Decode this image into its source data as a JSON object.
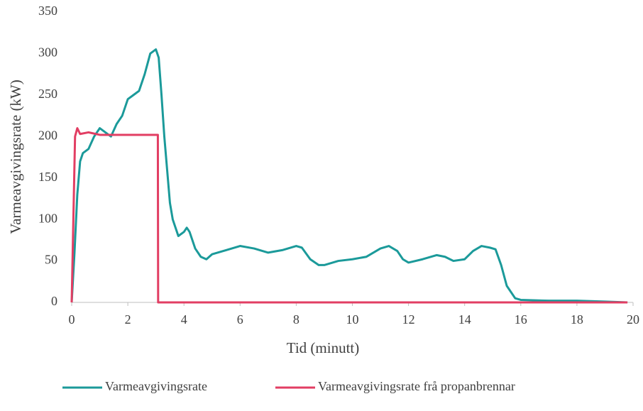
{
  "chart_data": {
    "type": "line",
    "x_label": "Tid (minutt)",
    "y_label": "Varmeavgivingsrate (kW)",
    "xlim": [
      0,
      20
    ],
    "xticks": [
      0,
      2,
      4,
      6,
      8,
      10,
      12,
      14,
      16,
      18,
      20
    ],
    "ylim": [
      0,
      350
    ],
    "yticks": [
      0,
      50,
      100,
      150,
      200,
      250,
      300,
      350
    ],
    "grid": false,
    "legend": "bottom",
    "series": [
      {
        "name": "Varmeavgivingsrate",
        "color": "#1b9a9a",
        "x": [
          0,
          0.1,
          0.2,
          0.3,
          0.4,
          0.6,
          0.8,
          1.0,
          1.2,
          1.4,
          1.6,
          1.8,
          2.0,
          2.2,
          2.4,
          2.6,
          2.8,
          3.0,
          3.1,
          3.2,
          3.3,
          3.4,
          3.5,
          3.6,
          3.8,
          4.0,
          4.1,
          4.2,
          4.4,
          4.6,
          4.8,
          5.0,
          5.5,
          6.0,
          6.5,
          7.0,
          7.5,
          8.0,
          8.2,
          8.5,
          8.8,
          9.0,
          9.5,
          10.0,
          10.5,
          11.0,
          11.3,
          11.6,
          11.8,
          12.0,
          12.5,
          13.0,
          13.3,
          13.6,
          14.0,
          14.3,
          14.6,
          14.9,
          15.1,
          15.3,
          15.5,
          15.8,
          16.0,
          17.0,
          18.0,
          19.0,
          19.8
        ],
        "values": [
          0,
          60,
          130,
          170,
          180,
          185,
          200,
          210,
          205,
          200,
          215,
          225,
          245,
          250,
          255,
          275,
          300,
          305,
          295,
          250,
          200,
          160,
          120,
          100,
          80,
          85,
          90,
          85,
          65,
          55,
          52,
          58,
          63,
          68,
          65,
          60,
          63,
          68,
          66,
          52,
          45,
          45,
          50,
          52,
          55,
          65,
          68,
          62,
          52,
          48,
          52,
          57,
          55,
          50,
          52,
          62,
          68,
          66,
          64,
          45,
          20,
          5,
          3,
          2,
          2,
          1,
          0
        ]
      },
      {
        "name": "Varmeavgivingsrate frå propanbrennar",
        "color": "#e23e63",
        "x": [
          0,
          0.12,
          0.2,
          0.3,
          0.6,
          1.0,
          3.0,
          3.07,
          3.08,
          19.8
        ],
        "values": [
          0,
          200,
          210,
          203,
          205,
          202,
          202,
          202,
          0,
          0
        ]
      }
    ]
  }
}
